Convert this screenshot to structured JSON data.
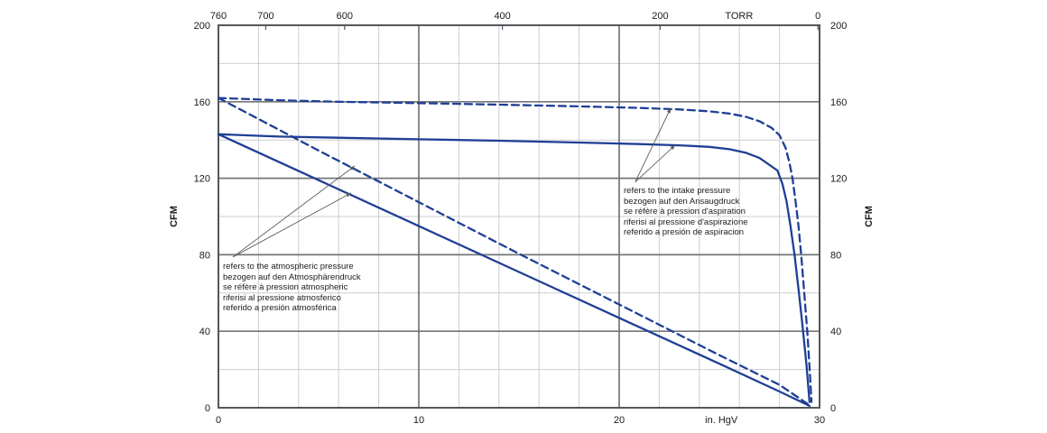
{
  "chart_data": {
    "type": "line",
    "title": "",
    "x_axis_bottom": {
      "label": "in. HgV",
      "range": [
        0,
        30
      ],
      "ticks": [
        0,
        10,
        20,
        30
      ],
      "minor_step": 2,
      "major_ticks": [
        10,
        20
      ],
      "unit_label_x": 25.1
    },
    "x_axis_top": {
      "label": "TORR",
      "range": [
        760,
        0
      ],
      "ticks": [
        760,
        700,
        600,
        400,
        200,
        0
      ],
      "unit_label_torr": 100
    },
    "y_axis": {
      "label": "CFM",
      "range": [
        0,
        200
      ],
      "ticks": [
        0,
        40,
        80,
        120,
        160,
        200
      ],
      "minor_step": 20,
      "major_step": 40
    },
    "grid": {
      "minor": true,
      "major": true
    },
    "legend": "none",
    "colors": {
      "curve": "#1f3f96",
      "grid_minor": "#cbced2",
      "grid_major": "#73767a",
      "border": "#53565a",
      "text": "#1a1a1a",
      "leader": "#5a5d60"
    },
    "series": [
      {
        "id": "dashed-atmospheric",
        "name": "dashed curve referred to atmospheric pressure",
        "style": "dashed",
        "points": [
          [
            0,
            162
          ],
          [
            5,
            134.5
          ],
          [
            10,
            107.5
          ],
          [
            15,
            80.5
          ],
          [
            20,
            54
          ],
          [
            25,
            27.5
          ],
          [
            28,
            12
          ],
          [
            29.55,
            1
          ]
        ]
      },
      {
        "id": "solid-atmospheric",
        "name": "solid curve referred to atmospheric pressure",
        "style": "solid",
        "points": [
          [
            0,
            143
          ],
          [
            5,
            119
          ],
          [
            10,
            95
          ],
          [
            15,
            71
          ],
          [
            20,
            47
          ],
          [
            25,
            23
          ],
          [
            28,
            8.5
          ],
          [
            29.5,
            1
          ]
        ]
      },
      {
        "id": "dashed-intake",
        "name": "dashed curve referred to intake pressure",
        "style": "dashed",
        "points": [
          [
            0,
            162
          ],
          [
            3,
            160.8
          ],
          [
            6,
            160
          ],
          [
            10,
            159.3
          ],
          [
            14,
            158.5
          ],
          [
            18,
            157.6
          ],
          [
            21,
            156.8
          ],
          [
            23,
            156
          ],
          [
            24.5,
            155
          ],
          [
            25.5,
            153.8
          ],
          [
            26.3,
            152.2
          ],
          [
            27,
            149.8
          ],
          [
            27.6,
            146.4
          ],
          [
            28,
            142.5
          ],
          [
            28.3,
            136
          ],
          [
            28.5,
            128
          ],
          [
            28.65,
            120
          ],
          [
            28.8,
            108
          ],
          [
            28.95,
            95
          ],
          [
            29.1,
            78
          ],
          [
            29.25,
            58
          ],
          [
            29.4,
            38
          ],
          [
            29.52,
            18
          ],
          [
            29.6,
            3
          ]
        ]
      },
      {
        "id": "solid-intake",
        "name": "solid curve referred to intake pressure",
        "style": "solid",
        "points": [
          [
            0,
            143
          ],
          [
            3,
            141.8
          ],
          [
            6,
            141.2
          ],
          [
            10,
            140.4
          ],
          [
            14,
            139.6
          ],
          [
            18,
            138.7
          ],
          [
            21,
            137.9
          ],
          [
            23,
            137.2
          ],
          [
            24.5,
            136.4
          ],
          [
            25.5,
            135.2
          ],
          [
            26.3,
            133.4
          ],
          [
            27,
            130.6
          ],
          [
            27.5,
            127
          ],
          [
            27.9,
            124
          ],
          [
            28.15,
            117
          ],
          [
            28.35,
            108
          ],
          [
            28.55,
            95
          ],
          [
            28.75,
            80
          ],
          [
            28.95,
            62
          ],
          [
            29.15,
            43
          ],
          [
            29.35,
            22
          ],
          [
            29.5,
            3
          ]
        ]
      }
    ],
    "annotations": [
      {
        "id": "atmospheric",
        "lines": [
          "refers to the atmospheric pressure",
          "bezogen auf den Atmosphärendruck",
          "se réfère à pression atmospheric",
          "riferisi al pressione atmosferico",
          "referido a presión atmosférica"
        ],
        "leader_origin": [
          0.72,
          78.8
        ],
        "leader_targets": [
          [
            6.8,
            126.4
          ],
          [
            6.62,
            112.3
          ]
        ]
      },
      {
        "id": "intake",
        "lines": [
          "refers to the intake pressure",
          "bezogen auf den Ansaugdruck",
          "se réfère à pression d'aspiration",
          "riferisi al pressione d'aspirazione",
          "referido a presión de aspiracion"
        ],
        "leader_origin": [
          20.8,
          118
        ],
        "leader_targets": [
          [
            22.57,
            156.6
          ],
          [
            22.79,
            137.3
          ]
        ]
      }
    ]
  }
}
